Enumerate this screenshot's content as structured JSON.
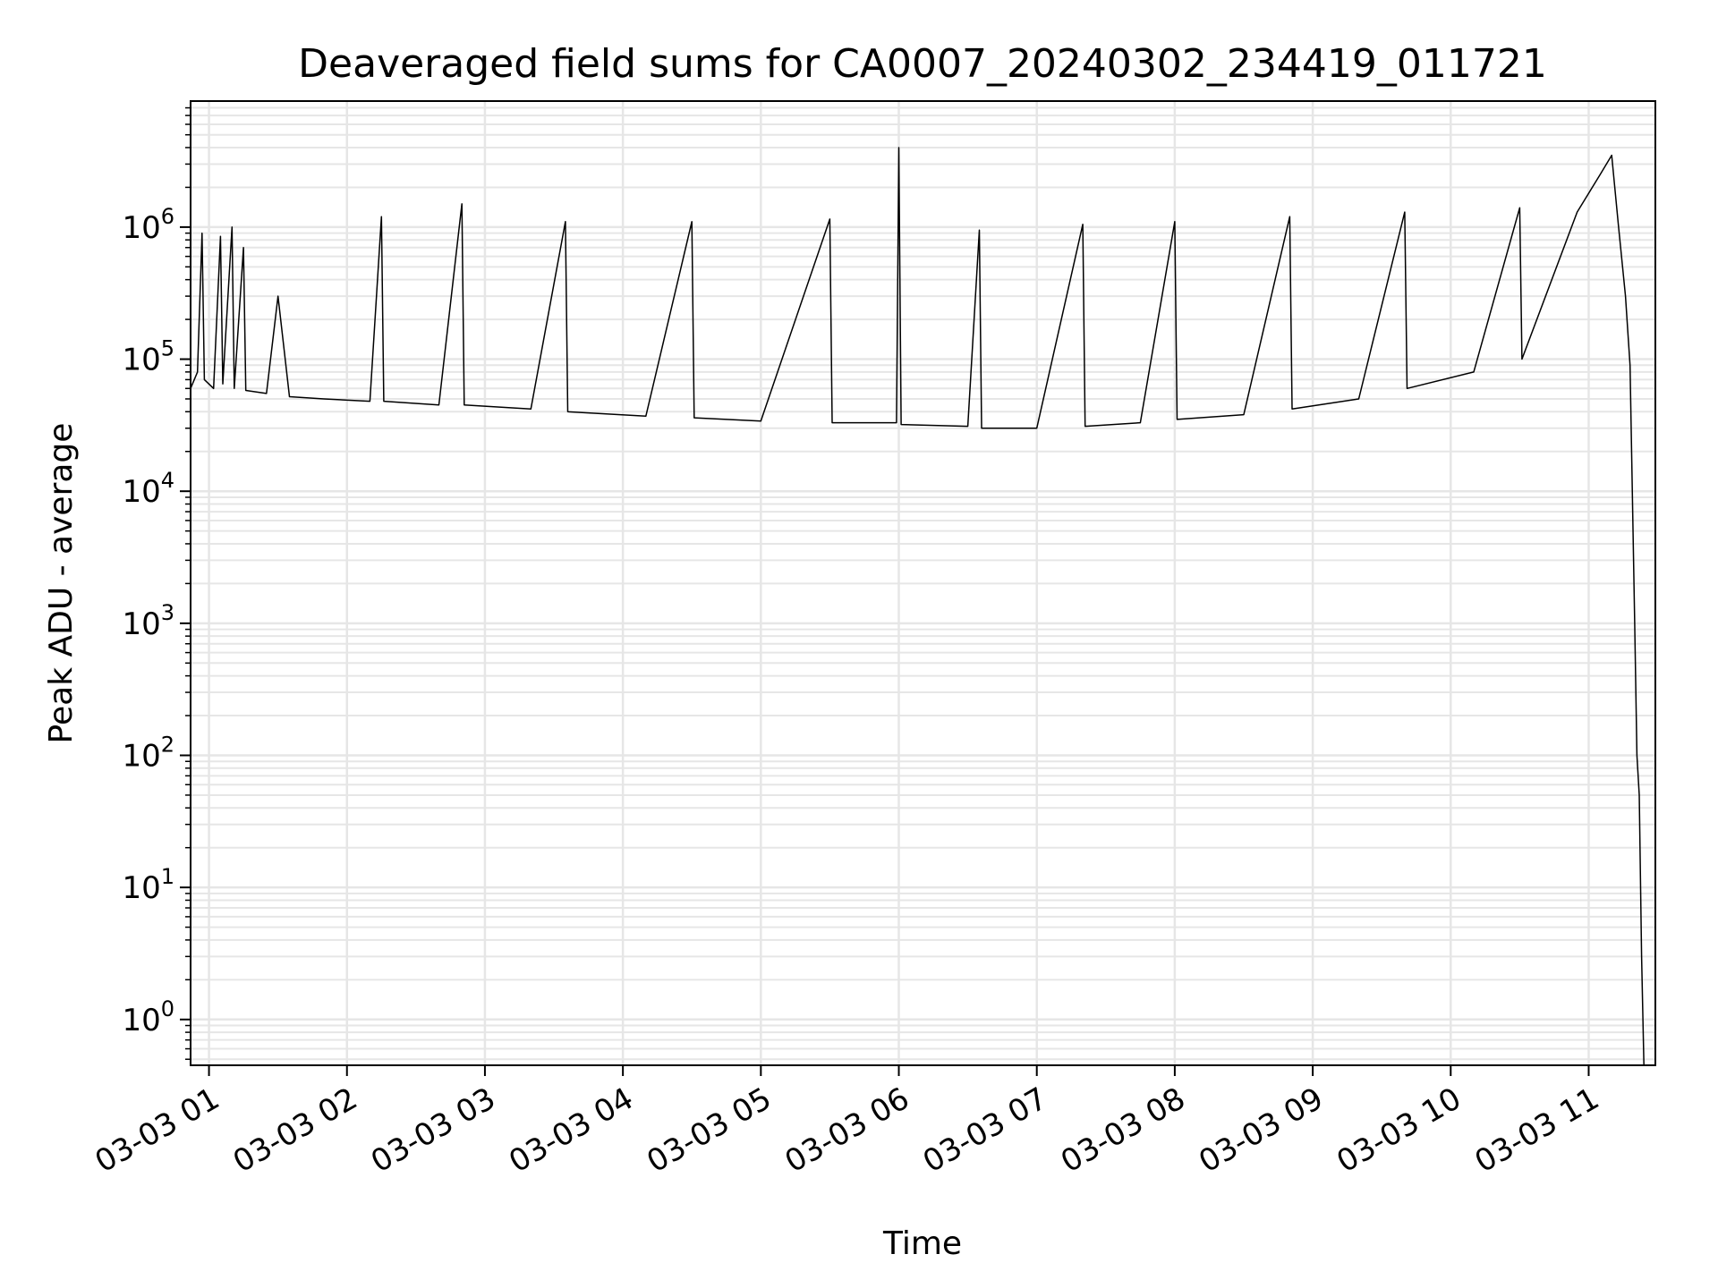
{
  "chart_data": {
    "type": "line",
    "title": "Deaveraged field sums for CA0007_20240302_234419_011721",
    "xlabel": "Time",
    "ylabel": "Peak ADU - average",
    "y_scale": "log",
    "ylim": [
      0.45,
      9000000
    ],
    "xlim": [
      "2024-03-03 00:52",
      "2024-03-03 11:29"
    ],
    "grid": true,
    "x_ticks": [
      {
        "t": "2024-03-03 01:00",
        "label": "03-03 01"
      },
      {
        "t": "2024-03-03 02:00",
        "label": "03-03 02"
      },
      {
        "t": "2024-03-03 03:00",
        "label": "03-03 03"
      },
      {
        "t": "2024-03-03 04:00",
        "label": "03-03 04"
      },
      {
        "t": "2024-03-03 05:00",
        "label": "03-03 05"
      },
      {
        "t": "2024-03-03 06:00",
        "label": "03-03 06"
      },
      {
        "t": "2024-03-03 07:00",
        "label": "03-03 07"
      },
      {
        "t": "2024-03-03 08:00",
        "label": "03-03 08"
      },
      {
        "t": "2024-03-03 09:00",
        "label": "03-03 09"
      },
      {
        "t": "2024-03-03 10:00",
        "label": "03-03 10"
      },
      {
        "t": "2024-03-03 11:00",
        "label": "03-03 11"
      }
    ],
    "y_ticks": [
      {
        "value": 1,
        "base": "10",
        "exp": "0"
      },
      {
        "value": 10,
        "base": "10",
        "exp": "1"
      },
      {
        "value": 100,
        "base": "10",
        "exp": "2"
      },
      {
        "value": 1000,
        "base": "10",
        "exp": "3"
      },
      {
        "value": 10000,
        "base": "10",
        "exp": "4"
      },
      {
        "value": 100000,
        "base": "10",
        "exp": "5"
      },
      {
        "value": 1000000,
        "base": "10",
        "exp": "6"
      }
    ],
    "series": [
      {
        "color": "#000000",
        "points": [
          [
            "2024-03-03 00:52",
            60000
          ],
          [
            "2024-03-03 00:55",
            80000
          ],
          [
            "2024-03-03 00:57",
            900000
          ],
          [
            "2024-03-03 00:58",
            70000
          ],
          [
            "2024-03-03 01:02",
            60000
          ],
          [
            "2024-03-03 01:05",
            850000
          ],
          [
            "2024-03-03 01:06",
            65000
          ],
          [
            "2024-03-03 01:10",
            1000000
          ],
          [
            "2024-03-03 01:11",
            60000
          ],
          [
            "2024-03-03 01:15",
            700000
          ],
          [
            "2024-03-03 01:16",
            58000
          ],
          [
            "2024-03-03 01:25",
            55000
          ],
          [
            "2024-03-03 01:30",
            300000
          ],
          [
            "2024-03-03 01:35",
            52000
          ],
          [
            "2024-03-03 01:50",
            50000
          ],
          [
            "2024-03-03 02:10",
            48000
          ],
          [
            "2024-03-03 02:15",
            1200000
          ],
          [
            "2024-03-03 02:16",
            48000
          ],
          [
            "2024-03-03 02:40",
            45000
          ],
          [
            "2024-03-03 02:50",
            1500000
          ],
          [
            "2024-03-03 02:51",
            45000
          ],
          [
            "2024-03-03 03:20",
            42000
          ],
          [
            "2024-03-03 03:35",
            1100000
          ],
          [
            "2024-03-03 03:36",
            40000
          ],
          [
            "2024-03-03 04:10",
            37000
          ],
          [
            "2024-03-03 04:30",
            1100000
          ],
          [
            "2024-03-03 04:31",
            36000
          ],
          [
            "2024-03-03 05:00",
            34000
          ],
          [
            "2024-03-03 05:30",
            1150000
          ],
          [
            "2024-03-03 05:31",
            33000
          ],
          [
            "2024-03-03 05:59",
            33000
          ],
          [
            "2024-03-03 06:00",
            4000000
          ],
          [
            "2024-03-03 06:01",
            32000
          ],
          [
            "2024-03-03 06:30",
            31000
          ],
          [
            "2024-03-03 06:35",
            950000
          ],
          [
            "2024-03-03 06:36",
            30000
          ],
          [
            "2024-03-03 07:00",
            30000
          ],
          [
            "2024-03-03 07:20",
            1050000
          ],
          [
            "2024-03-03 07:21",
            31000
          ],
          [
            "2024-03-03 07:45",
            33000
          ],
          [
            "2024-03-03 08:00",
            1100000
          ],
          [
            "2024-03-03 08:01",
            35000
          ],
          [
            "2024-03-03 08:30",
            38000
          ],
          [
            "2024-03-03 08:50",
            1200000
          ],
          [
            "2024-03-03 08:51",
            42000
          ],
          [
            "2024-03-03 09:20",
            50000
          ],
          [
            "2024-03-03 09:40",
            1300000
          ],
          [
            "2024-03-03 09:41",
            60000
          ],
          [
            "2024-03-03 10:10",
            80000
          ],
          [
            "2024-03-03 10:30",
            1400000
          ],
          [
            "2024-03-03 10:31",
            100000
          ],
          [
            "2024-03-03 10:55",
            1300000
          ],
          [
            "2024-03-03 11:05",
            2500000
          ],
          [
            "2024-03-03 11:10",
            3500000
          ],
          [
            "2024-03-03 11:13",
            1000000
          ],
          [
            "2024-03-03 11:16",
            300000
          ],
          [
            "2024-03-03 11:18",
            90000
          ],
          [
            "2024-03-03 11:20",
            1000
          ],
          [
            "2024-03-03 11:21",
            100
          ],
          [
            "2024-03-03 11:22",
            50
          ],
          [
            "2024-03-03 11:23",
            3
          ],
          [
            "2024-03-03 11:24",
            0.45
          ]
        ]
      }
    ]
  }
}
